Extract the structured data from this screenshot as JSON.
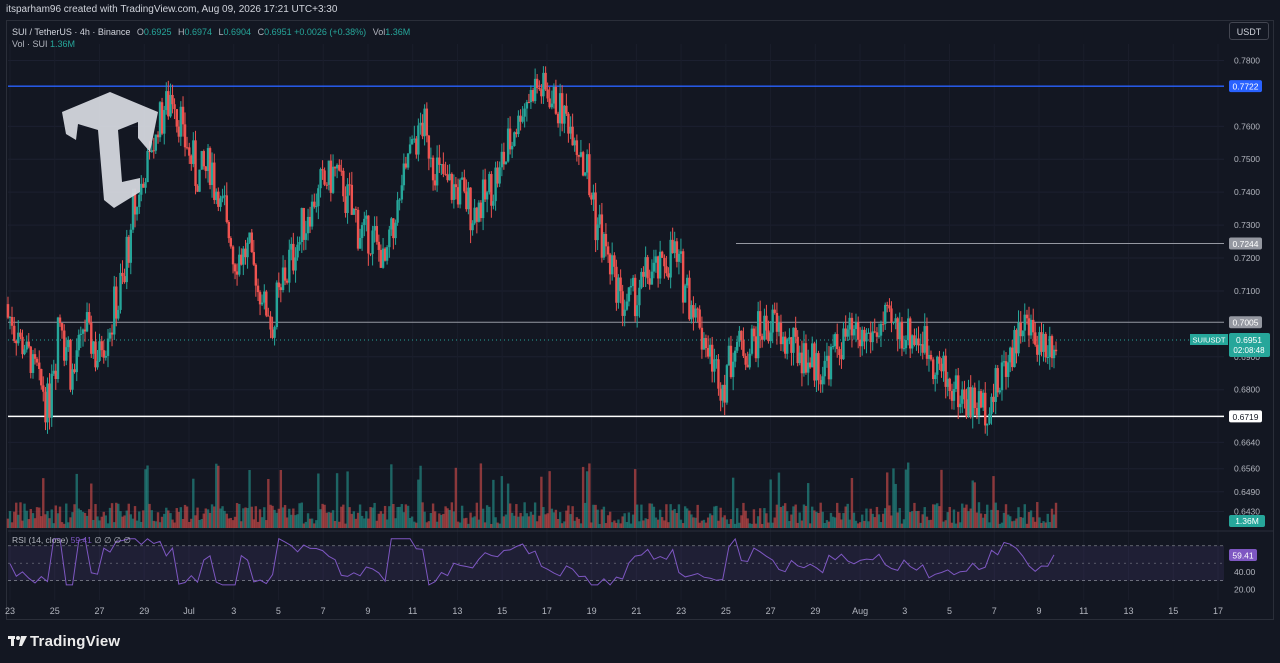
{
  "header": {
    "caption": "itsparham96 created with TradingView.com, Aug 09, 2026 17:21 UTC+3:30"
  },
  "legend": {
    "symbol": "SUI / TetherUS · 4h · Binance",
    "o_label": "O",
    "o": "0.6925",
    "h_label": "H",
    "h": "0.6974",
    "l_label": "L",
    "l": "0.6904",
    "c_label": "C",
    "c": "0.6951",
    "change": "+0.0026 (+0.38%)",
    "vol_label": "Vol",
    "vol": "1.36M",
    "vol_line_label": "Vol · SUI",
    "vol_line_value": "1.36M"
  },
  "currency_button": "USDT",
  "rsi": {
    "label": "RSI (14, close)",
    "value": "59.41",
    "extra": "∅  ∅  ∅  ∅",
    "badge": "59.41",
    "axis": [
      "40.00",
      "20.00"
    ]
  },
  "price_tag": {
    "symbol": "SUIUSDT",
    "price": "0.6951",
    "countdown": "02:08:48"
  },
  "volume_badge": "1.36M",
  "footer": {
    "brand": "TradingView"
  },
  "colors": {
    "background": "#131722",
    "up": "#26a69a",
    "down": "#ef5350",
    "rsi": "#7e57c2",
    "hline_blue": "#2962ff"
  },
  "icons": [
    "tc-logo-icon",
    "tradingview-logo-icon"
  ],
  "chart_data": {
    "type": "candlestick",
    "timeframe": "4h",
    "y_axis_ticks": [
      "0.7800",
      "0.7722",
      "0.7600",
      "0.7500",
      "0.7400",
      "0.7300",
      "0.7244",
      "0.7200",
      "0.7100",
      "0.7005",
      "0.6951",
      "0.6900",
      "0.6800",
      "0.6719",
      "0.6640",
      "0.6560",
      "0.6490",
      "0.6430"
    ],
    "ylim": [
      0.638,
      0.785
    ],
    "x_axis_ticks": [
      "23",
      "25",
      "27",
      "29",
      "Jul",
      "3",
      "5",
      "7",
      "9",
      "11",
      "13",
      "15",
      "17",
      "19",
      "21",
      "23",
      "25",
      "27",
      "29",
      "Aug",
      "3",
      "5",
      "7",
      "9",
      "11",
      "13",
      "15",
      "17"
    ],
    "horizontal_levels": [
      {
        "value": 0.7722,
        "label": "0.7722",
        "style": "blue"
      },
      {
        "value": 0.7244,
        "label": "0.7244",
        "style": "gray"
      },
      {
        "value": 0.7005,
        "label": "0.7005",
        "style": "gray"
      },
      {
        "value": 0.6719,
        "label": "0.6719",
        "style": "white"
      }
    ],
    "close_path": [
      [
        0,
        0.702
      ],
      [
        3,
        0.69
      ],
      [
        6,
        0.676
      ],
      [
        8,
        0.702
      ],
      [
        10,
        0.685
      ],
      [
        12,
        0.699
      ],
      [
        14,
        0.69
      ],
      [
        16,
        0.7
      ],
      [
        18,
        0.712
      ],
      [
        20,
        0.735
      ],
      [
        22,
        0.748
      ],
      [
        24,
        0.762
      ],
      [
        26,
        0.77
      ],
      [
        28,
        0.755
      ],
      [
        30,
        0.745
      ],
      [
        32,
        0.748
      ],
      [
        34,
        0.735
      ],
      [
        36,
        0.72
      ],
      [
        38,
        0.722
      ],
      [
        40,
        0.71
      ],
      [
        42,
        0.7
      ],
      [
        44,
        0.715
      ],
      [
        46,
        0.725
      ],
      [
        48,
        0.735
      ],
      [
        50,
        0.742
      ],
      [
        52,
        0.746
      ],
      [
        54,
        0.738
      ],
      [
        56,
        0.728
      ],
      [
        58,
        0.726
      ],
      [
        60,
        0.718
      ],
      [
        62,
        0.735
      ],
      [
        64,
        0.752
      ],
      [
        66,
        0.76
      ],
      [
        68,
        0.748
      ],
      [
        70,
        0.742
      ],
      [
        72,
        0.74
      ],
      [
        74,
        0.734
      ],
      [
        76,
        0.738
      ],
      [
        78,
        0.745
      ],
      [
        80,
        0.755
      ],
      [
        82,
        0.766
      ],
      [
        84,
        0.772
      ],
      [
        86,
        0.77
      ],
      [
        88,
        0.765
      ],
      [
        90,
        0.76
      ],
      [
        92,
        0.748
      ],
      [
        94,
        0.73
      ],
      [
        96,
        0.718
      ],
      [
        98,
        0.706
      ],
      [
        100,
        0.708
      ],
      [
        102,
        0.715
      ],
      [
        104,
        0.716
      ],
      [
        106,
        0.722
      ],
      [
        108,
        0.712
      ],
      [
        110,
        0.702
      ],
      [
        112,
        0.69
      ],
      [
        114,
        0.682
      ],
      [
        116,
        0.694
      ],
      [
        118,
        0.692
      ],
      [
        120,
        0.698
      ],
      [
        122,
        0.7
      ],
      [
        124,
        0.694
      ],
      [
        126,
        0.692
      ],
      [
        128,
        0.689
      ],
      [
        130,
        0.686
      ],
      [
        132,
        0.692
      ],
      [
        134,
        0.696
      ],
      [
        136,
        0.695
      ],
      [
        138,
        0.697
      ],
      [
        140,
        0.7
      ],
      [
        142,
        0.698
      ],
      [
        144,
        0.697
      ],
      [
        146,
        0.695
      ],
      [
        148,
        0.689
      ],
      [
        150,
        0.682
      ],
      [
        152,
        0.678
      ],
      [
        154,
        0.676
      ],
      [
        156,
        0.675
      ],
      [
        158,
        0.681
      ],
      [
        160,
        0.692
      ],
      [
        162,
        0.7
      ],
      [
        164,
        0.696
      ],
      [
        166,
        0.694
      ],
      [
        167,
        0.6951
      ]
    ],
    "rsi": {
      "current": 59.41,
      "overbought": 70,
      "oversold": 30
    },
    "volume_current": "1.36M"
  }
}
